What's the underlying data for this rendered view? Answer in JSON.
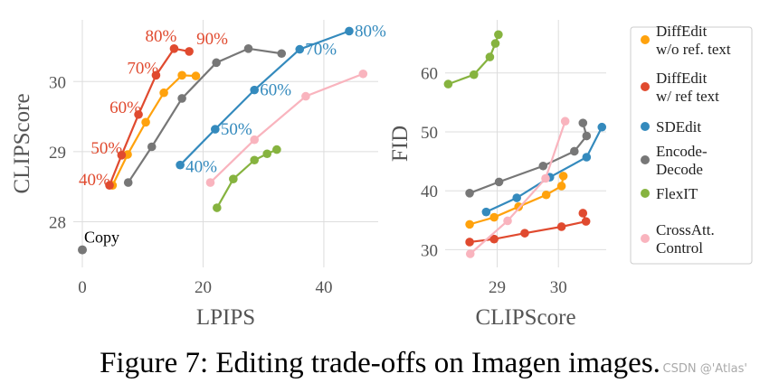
{
  "caption": "Figure 7: Editing trade-offs on Imagen images.",
  "watermark": "CSDN @'Atlas'",
  "colors": {
    "DiffEdit w/o ref. text": "#ffa20d",
    "DiffEdit w/ ref text": "#e04a2f",
    "SDEdit": "#348abd",
    "Encode-Decode": "#777777",
    "FlexIT": "#86b33f",
    "CrossAtt. Control": "#f9b4be",
    "Copy": "#777777",
    "grid": "#dddddd"
  },
  "legend": {
    "entries": [
      {
        "key": "DiffEdit w/o ref. text",
        "lines": [
          "DiffEdit",
          "w/o ref. text"
        ]
      },
      {
        "key": "DiffEdit w/ ref text",
        "lines": [
          "DiffEdit",
          "w/ ref text"
        ]
      },
      {
        "key": "SDEdit",
        "lines": [
          "SDEdit"
        ]
      },
      {
        "key": "Encode-Decode",
        "lines": [
          "Encode-",
          "Decode"
        ]
      },
      {
        "key": "FlexIT",
        "lines": [
          "FlexIT"
        ]
      },
      {
        "key": "CrossAtt. Control",
        "lines": [
          "CrossAtt.",
          "Control"
        ]
      }
    ]
  },
  "chart_data": [
    {
      "type": "line",
      "xlabel": "LPIPS",
      "ylabel": "CLIPScore",
      "xlim": [
        -1.5,
        49
      ],
      "ylim": [
        27.35,
        30.88
      ],
      "xticks": [
        0,
        20,
        40
      ],
      "yticks": [
        28,
        29,
        30
      ],
      "grid": true,
      "series": [
        {
          "key": "DiffEdit w/o ref. text",
          "x": [
            5.0,
            7.5,
            10.5,
            13.5,
            16.5,
            18.8
          ],
          "y": [
            28.52,
            28.96,
            29.42,
            29.84,
            30.09,
            30.08
          ]
        },
        {
          "key": "DiffEdit w/ ref text",
          "x": [
            4.5,
            6.5,
            9.3,
            12.2,
            15.2,
            17.7
          ],
          "y": [
            28.52,
            28.95,
            29.53,
            30.09,
            30.47,
            30.43
          ]
        },
        {
          "key": "SDEdit",
          "x": [
            16.2,
            22.0,
            28.5,
            36.0,
            44.2
          ],
          "y": [
            28.81,
            29.32,
            29.88,
            30.46,
            30.72
          ]
        },
        {
          "key": "Encode-Decode",
          "x": [
            7.6,
            11.5,
            16.5,
            22.2,
            27.5,
            33.0
          ],
          "y": [
            28.56,
            29.07,
            29.76,
            30.27,
            30.47,
            30.4
          ]
        },
        {
          "key": "FlexIT",
          "x": [
            22.3,
            25.0,
            28.5,
            30.6,
            32.2
          ],
          "y": [
            28.2,
            28.61,
            28.88,
            28.97,
            29.03
          ]
        },
        {
          "key": "CrossAtt. Control",
          "x": [
            21.2,
            28.5,
            37.0,
            46.5
          ],
          "y": [
            28.56,
            29.17,
            29.79,
            30.11
          ]
        }
      ],
      "points": [
        {
          "key": "Copy",
          "x": 0.0,
          "y": 27.6,
          "label": "Copy"
        }
      ],
      "annotations": [
        {
          "text": "40%",
          "series": "DiffEdit w/ ref text",
          "index": 0
        },
        {
          "text": "50%",
          "series": "DiffEdit w/ ref text",
          "index": 1
        },
        {
          "text": "60%",
          "series": "DiffEdit w/ ref text",
          "index": 2
        },
        {
          "text": "70%",
          "series": "DiffEdit w/ ref text",
          "index": 3
        },
        {
          "text": "80%",
          "series": "DiffEdit w/ ref text",
          "index": 4
        },
        {
          "text": "90%",
          "series": "DiffEdit w/ ref text",
          "index": 5
        },
        {
          "text": "40%",
          "series": "SDEdit",
          "index": 0
        },
        {
          "text": "50%",
          "series": "SDEdit",
          "index": 1
        },
        {
          "text": "60%",
          "series": "SDEdit",
          "index": 2
        },
        {
          "text": "70%",
          "series": "SDEdit",
          "index": 3
        },
        {
          "text": "80%",
          "series": "SDEdit",
          "index": 4
        }
      ]
    },
    {
      "type": "line",
      "xlabel": "CLIPScore",
      "ylabel": "FID",
      "xlim": [
        28.15,
        30.78
      ],
      "ylim": [
        27.0,
        69.0
      ],
      "xticks": [
        29,
        30
      ],
      "yticks": [
        30,
        40,
        50,
        60
      ],
      "grid": true,
      "series": [
        {
          "key": "DiffEdit w/o ref. text",
          "x": [
            28.55,
            28.95,
            29.35,
            29.8,
            30.05,
            30.08
          ],
          "y": [
            34.3,
            35.5,
            37.3,
            39.3,
            40.8,
            42.5
          ]
        },
        {
          "key": "DiffEdit w/ ref text",
          "x": [
            28.55,
            28.95,
            29.45,
            30.05,
            30.45,
            30.4
          ],
          "y": [
            31.3,
            31.8,
            32.8,
            33.9,
            34.8,
            36.2
          ]
        },
        {
          "key": "SDEdit",
          "x": [
            28.82,
            29.32,
            29.86,
            30.46,
            30.71
          ],
          "y": [
            36.4,
            38.8,
            42.3,
            45.7,
            50.8
          ]
        },
        {
          "key": "Encode-Decode",
          "x": [
            28.55,
            29.03,
            29.75,
            30.26,
            30.46,
            30.4
          ],
          "y": [
            39.6,
            41.5,
            44.2,
            46.7,
            49.3,
            51.5
          ]
        },
        {
          "key": "FlexIT",
          "x": [
            28.2,
            28.62,
            28.88,
            28.97,
            29.02
          ],
          "y": [
            58.1,
            59.7,
            62.7,
            65.0,
            66.5
          ]
        },
        {
          "key": "CrossAtt. Control",
          "x": [
            28.56,
            29.17,
            29.79,
            30.11
          ],
          "y": [
            29.3,
            34.9,
            42.1,
            51.8
          ]
        }
      ]
    }
  ]
}
